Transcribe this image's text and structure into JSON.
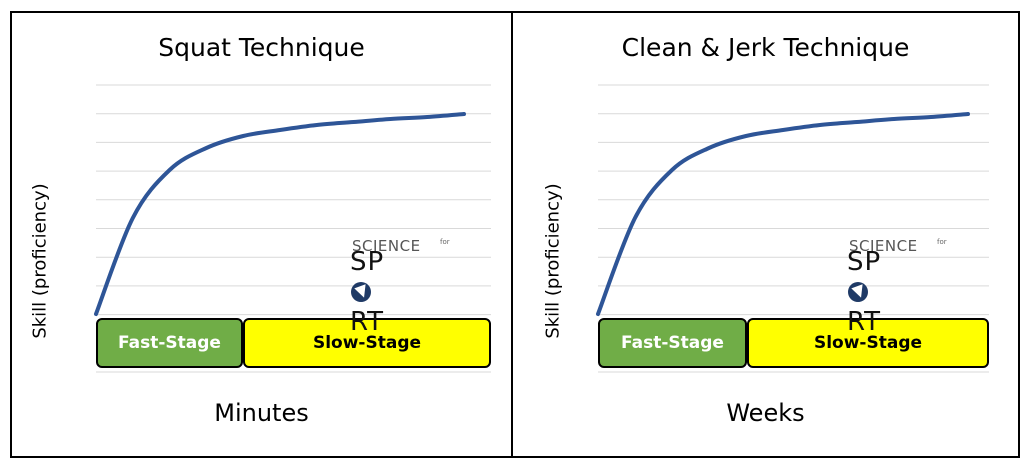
{
  "chart_data": [
    {
      "type": "line",
      "title": "Squat Technique",
      "xlabel": "Minutes",
      "ylabel": "Skill (proficiency)",
      "grid": true,
      "series": [
        {
          "x": [
            0,
            1,
            2,
            3,
            4,
            5,
            6,
            7,
            8,
            9,
            10
          ],
          "y": [
            0,
            4.8,
            7.2,
            8.3,
            8.9,
            9.2,
            9.45,
            9.6,
            9.75,
            9.85,
            10
          ]
        }
      ],
      "stages": [
        {
          "label": "Fast-Stage",
          "color": "#70ad47"
        },
        {
          "label": "Slow-Stage",
          "color": "#ffff00"
        }
      ]
    },
    {
      "type": "line",
      "title": "Clean & Jerk Technique",
      "xlabel": "Weeks",
      "ylabel": "Skill (proficiency)",
      "grid": true,
      "series": [
        {
          "x": [
            0,
            1,
            2,
            3,
            4,
            5,
            6,
            7,
            8,
            9,
            10
          ],
          "y": [
            0,
            4.8,
            7.2,
            8.3,
            8.9,
            9.2,
            9.45,
            9.6,
            9.75,
            9.85,
            10
          ]
        }
      ],
      "stages": [
        {
          "label": "Fast-Stage",
          "color": "#70ad47"
        },
        {
          "label": "Slow-Stage",
          "color": "#ffff00"
        }
      ]
    }
  ],
  "logo": {
    "line1": "SCIENCE",
    "for": "for",
    "line2a": "SP",
    "line2b": "RT"
  },
  "colors": {
    "curve": "#2e5597",
    "grid": "#d9d9d9",
    "fast": "#70ad47",
    "slow": "#ffff00"
  }
}
